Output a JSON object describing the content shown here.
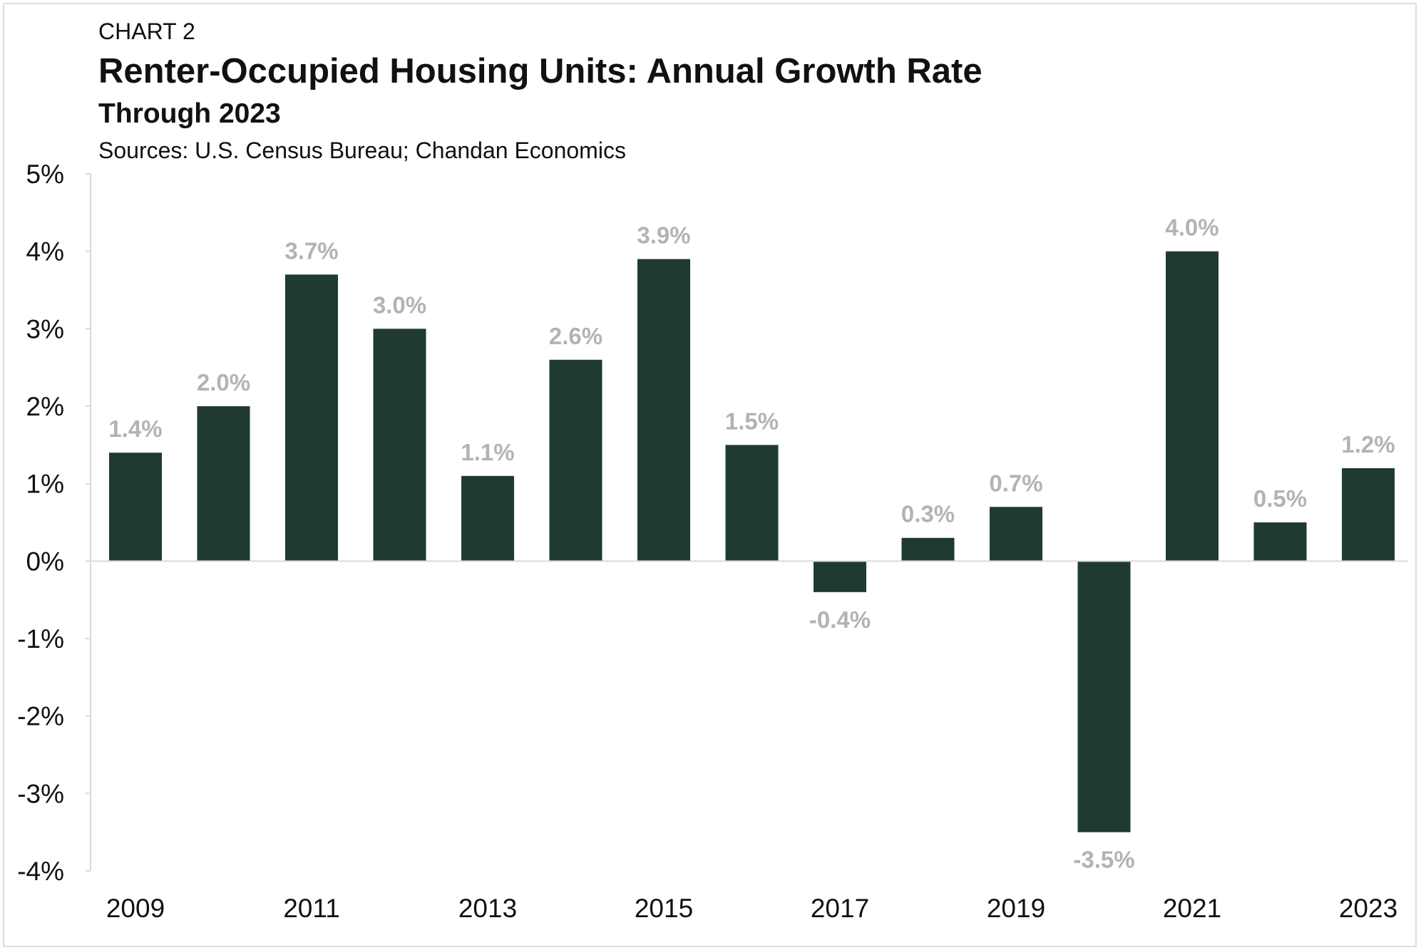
{
  "header": {
    "kicker": "CHART 2",
    "title": "Renter-Occupied Housing Units: Annual Growth Rate",
    "subtitle": "Through 2023",
    "source": "Sources: U.S. Census Bureau; Chandan Economics"
  },
  "chart_data": {
    "type": "bar",
    "title": "Renter-Occupied Housing Units: Annual Growth Rate",
    "subtitle": "Through 2023",
    "categories": [
      "2009",
      "2010",
      "2011",
      "2012",
      "2013",
      "2014",
      "2015",
      "2016",
      "2017",
      "2018",
      "2019",
      "2020",
      "2021",
      "2022",
      "2023"
    ],
    "x_tick_labels": [
      "2009",
      "",
      "2011",
      "",
      "2013",
      "",
      "2015",
      "",
      "2017",
      "",
      "2019",
      "",
      "2021",
      "",
      "2023"
    ],
    "values": [
      1.4,
      2.0,
      3.7,
      3.0,
      1.1,
      2.6,
      3.9,
      1.5,
      -0.4,
      0.3,
      0.7,
      -3.5,
      4.0,
      0.5,
      1.2
    ],
    "data_labels": [
      "1.4%",
      "2.0%",
      "3.7%",
      "3.0%",
      "1.1%",
      "2.6%",
      "3.9%",
      "1.5%",
      "-0.4%",
      "0.3%",
      "0.7%",
      "-3.5%",
      "4.0%",
      "0.5%",
      "1.2%"
    ],
    "y_ticks": [
      5,
      4,
      3,
      2,
      1,
      0,
      -1,
      -2,
      -3,
      -4
    ],
    "y_tick_labels": [
      "5%",
      "4%",
      "3%",
      "2%",
      "1%",
      "0%",
      "-1%",
      "-2%",
      "-3%",
      "-4%"
    ],
    "ylim": [
      -4,
      5
    ],
    "xlabel": "",
    "ylabel": "",
    "grid": false,
    "colors": {
      "bar": "#1f3a32",
      "data_label": "#b3b3b3",
      "axis": "#d9d9d9"
    }
  }
}
